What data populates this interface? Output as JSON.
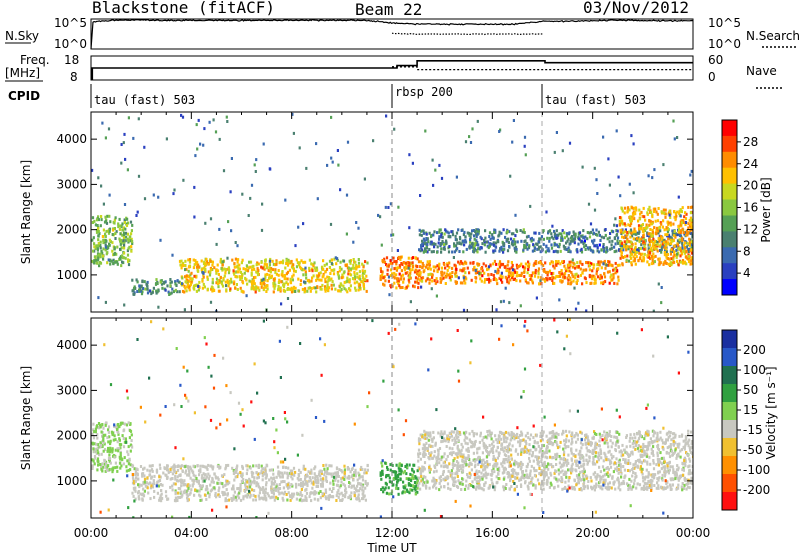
{
  "header": {
    "station": "Blackstone (fitACF)",
    "beam": "Beam 22",
    "date": "03/Nov/2012"
  },
  "strips": {
    "nsky_label": "N.Sky",
    "nsearch_label": "N.Search",
    "freq_label": "Freq.",
    "freq_unit": "[MHz]",
    "nave_label": "Nave",
    "cpid_label": "CPID",
    "left_top_ticks": [
      "10^5",
      "10^0"
    ],
    "right_top_ticks": [
      "10^5",
      "10^0"
    ],
    "freq_ticks": [
      "18",
      "8"
    ],
    "nave_ticks": [
      "60",
      "0"
    ],
    "cpid_segments": [
      {
        "start_hour": 0,
        "name": "tau (fast) 503"
      },
      {
        "start_hour": 12,
        "name": "rbsp 200"
      },
      {
        "start_hour": 18,
        "name": "tau (fast) 503"
      }
    ],
    "freq_series": {
      "hours": [
        0,
        0.05,
        12,
        12.2,
        13,
        18,
        18.1,
        24
      ],
      "values": [
        8.3,
        13.0,
        13.0,
        14.0,
        16.0,
        16.0,
        15.2,
        15.2
      ]
    },
    "nave_series": {
      "hours": [
        12,
        13,
        18,
        24
      ],
      "values": [
        33,
        26,
        26,
        26
      ]
    }
  },
  "x_axis": {
    "label": "Time UT",
    "ticks": [
      "00:00",
      "04:00",
      "08:00",
      "12:00",
      "16:00",
      "20:00",
      "00:00"
    ]
  },
  "y_axis": {
    "label": "Slant Range [km]",
    "ticks": [
      "1000",
      "2000",
      "3000",
      "4000"
    ]
  },
  "colorbars": {
    "power": {
      "title": "Power [dB]",
      "ticks": [
        "4",
        "8",
        "12",
        "16",
        "20",
        "24",
        "28"
      ],
      "colors": [
        "#0000ff",
        "#2a40c0",
        "#3a6ab0",
        "#4a8070",
        "#55a055",
        "#8ac840",
        "#c8d820",
        "#ffc000",
        "#ff8c00",
        "#ff4000",
        "#ff0000"
      ]
    },
    "velocity": {
      "title": "Velocity [m s⁻¹]",
      "ticks": [
        "200",
        "100",
        "50",
        "15",
        "-15",
        "-50",
        "-100",
        "-200"
      ],
      "colors": [
        "#1a2fa0",
        "#2858c8",
        "#207050",
        "#30a040",
        "#80d050",
        "#c8c8c0",
        "#f0c030",
        "#ff9000",
        "#ff5000",
        "#ff1010"
      ]
    }
  },
  "chart_data": [
    {
      "type": "line",
      "title": "N.Sky / N.Search",
      "x": [
        0,
        1,
        2,
        3,
        4,
        5,
        6,
        7,
        8,
        9,
        10,
        11,
        12,
        13,
        14,
        15,
        16,
        17,
        18,
        19,
        20,
        21,
        22,
        23,
        24
      ],
      "series": [
        {
          "name": "N.Sky",
          "values": [
            35000,
            60000,
            70000,
            55000,
            60000,
            55000,
            60000,
            58000,
            62000,
            60000,
            55000,
            58000,
            20000,
            15000,
            14000,
            14000,
            14000,
            14000,
            40000,
            45000,
            50000,
            60000,
            55000,
            50000,
            50000
          ]
        },
        {
          "name": "N.Search",
          "values": [
            null,
            null,
            null,
            null,
            null,
            null,
            null,
            null,
            null,
            null,
            null,
            null,
            400,
            300,
            300,
            300,
            300,
            300,
            null,
            null,
            null,
            null,
            null,
            null,
            null
          ]
        }
      ],
      "ylim": [
        1,
        100000
      ]
    },
    {
      "type": "heatmap",
      "title": "Power [dB]",
      "xlabel": "Time UT",
      "ylabel": "Slant Range [km]",
      "xlim": [
        0,
        24
      ],
      "ylim": [
        180,
        4600
      ],
      "features": [
        {
          "hour_start": 0,
          "hour_end": 1.6,
          "range_start_km": 1200,
          "range_end_km": 2300,
          "power_db": 14
        },
        {
          "hour_start": 1.6,
          "hour_end": 3.5,
          "range_start_km": 560,
          "range_end_km": 900,
          "power_db": 10
        },
        {
          "hour_start": 3.5,
          "hour_end": 11.0,
          "range_start_km": 620,
          "range_end_km": 1350,
          "power_db": 20
        },
        {
          "hour_start": 11.5,
          "hour_end": 13.0,
          "range_start_km": 700,
          "range_end_km": 1400,
          "power_db": 24
        },
        {
          "hour_start": 13.0,
          "hour_end": 21.0,
          "range_start_km": 800,
          "range_end_km": 1300,
          "power_db": 24
        },
        {
          "hour_start": 13.0,
          "hour_end": 24.0,
          "range_start_km": 1500,
          "range_end_km": 2000,
          "power_db": 8
        },
        {
          "hour_start": 21.0,
          "hour_end": 24.0,
          "range_start_km": 1200,
          "range_end_km": 2500,
          "power_db": 22
        }
      ]
    },
    {
      "type": "heatmap",
      "title": "Velocity [m s⁻¹]",
      "xlabel": "Time UT",
      "ylabel": "Slant Range [km]",
      "xlim": [
        0,
        24
      ],
      "ylim": [
        180,
        4600
      ],
      "features": [
        {
          "hour_start": 0,
          "hour_end": 1.6,
          "range_start_km": 1200,
          "range_end_km": 2300,
          "velocity": 20
        },
        {
          "hour_start": 1.6,
          "hour_end": 11.0,
          "range_start_km": 560,
          "range_end_km": 1350,
          "velocity": 0
        },
        {
          "hour_start": 11.5,
          "hour_end": 13.0,
          "range_start_km": 700,
          "range_end_km": 1400,
          "velocity": 60
        },
        {
          "hour_start": 13.0,
          "hour_end": 24.0,
          "range_start_km": 800,
          "range_end_km": 2100,
          "velocity": 0
        }
      ]
    }
  ]
}
